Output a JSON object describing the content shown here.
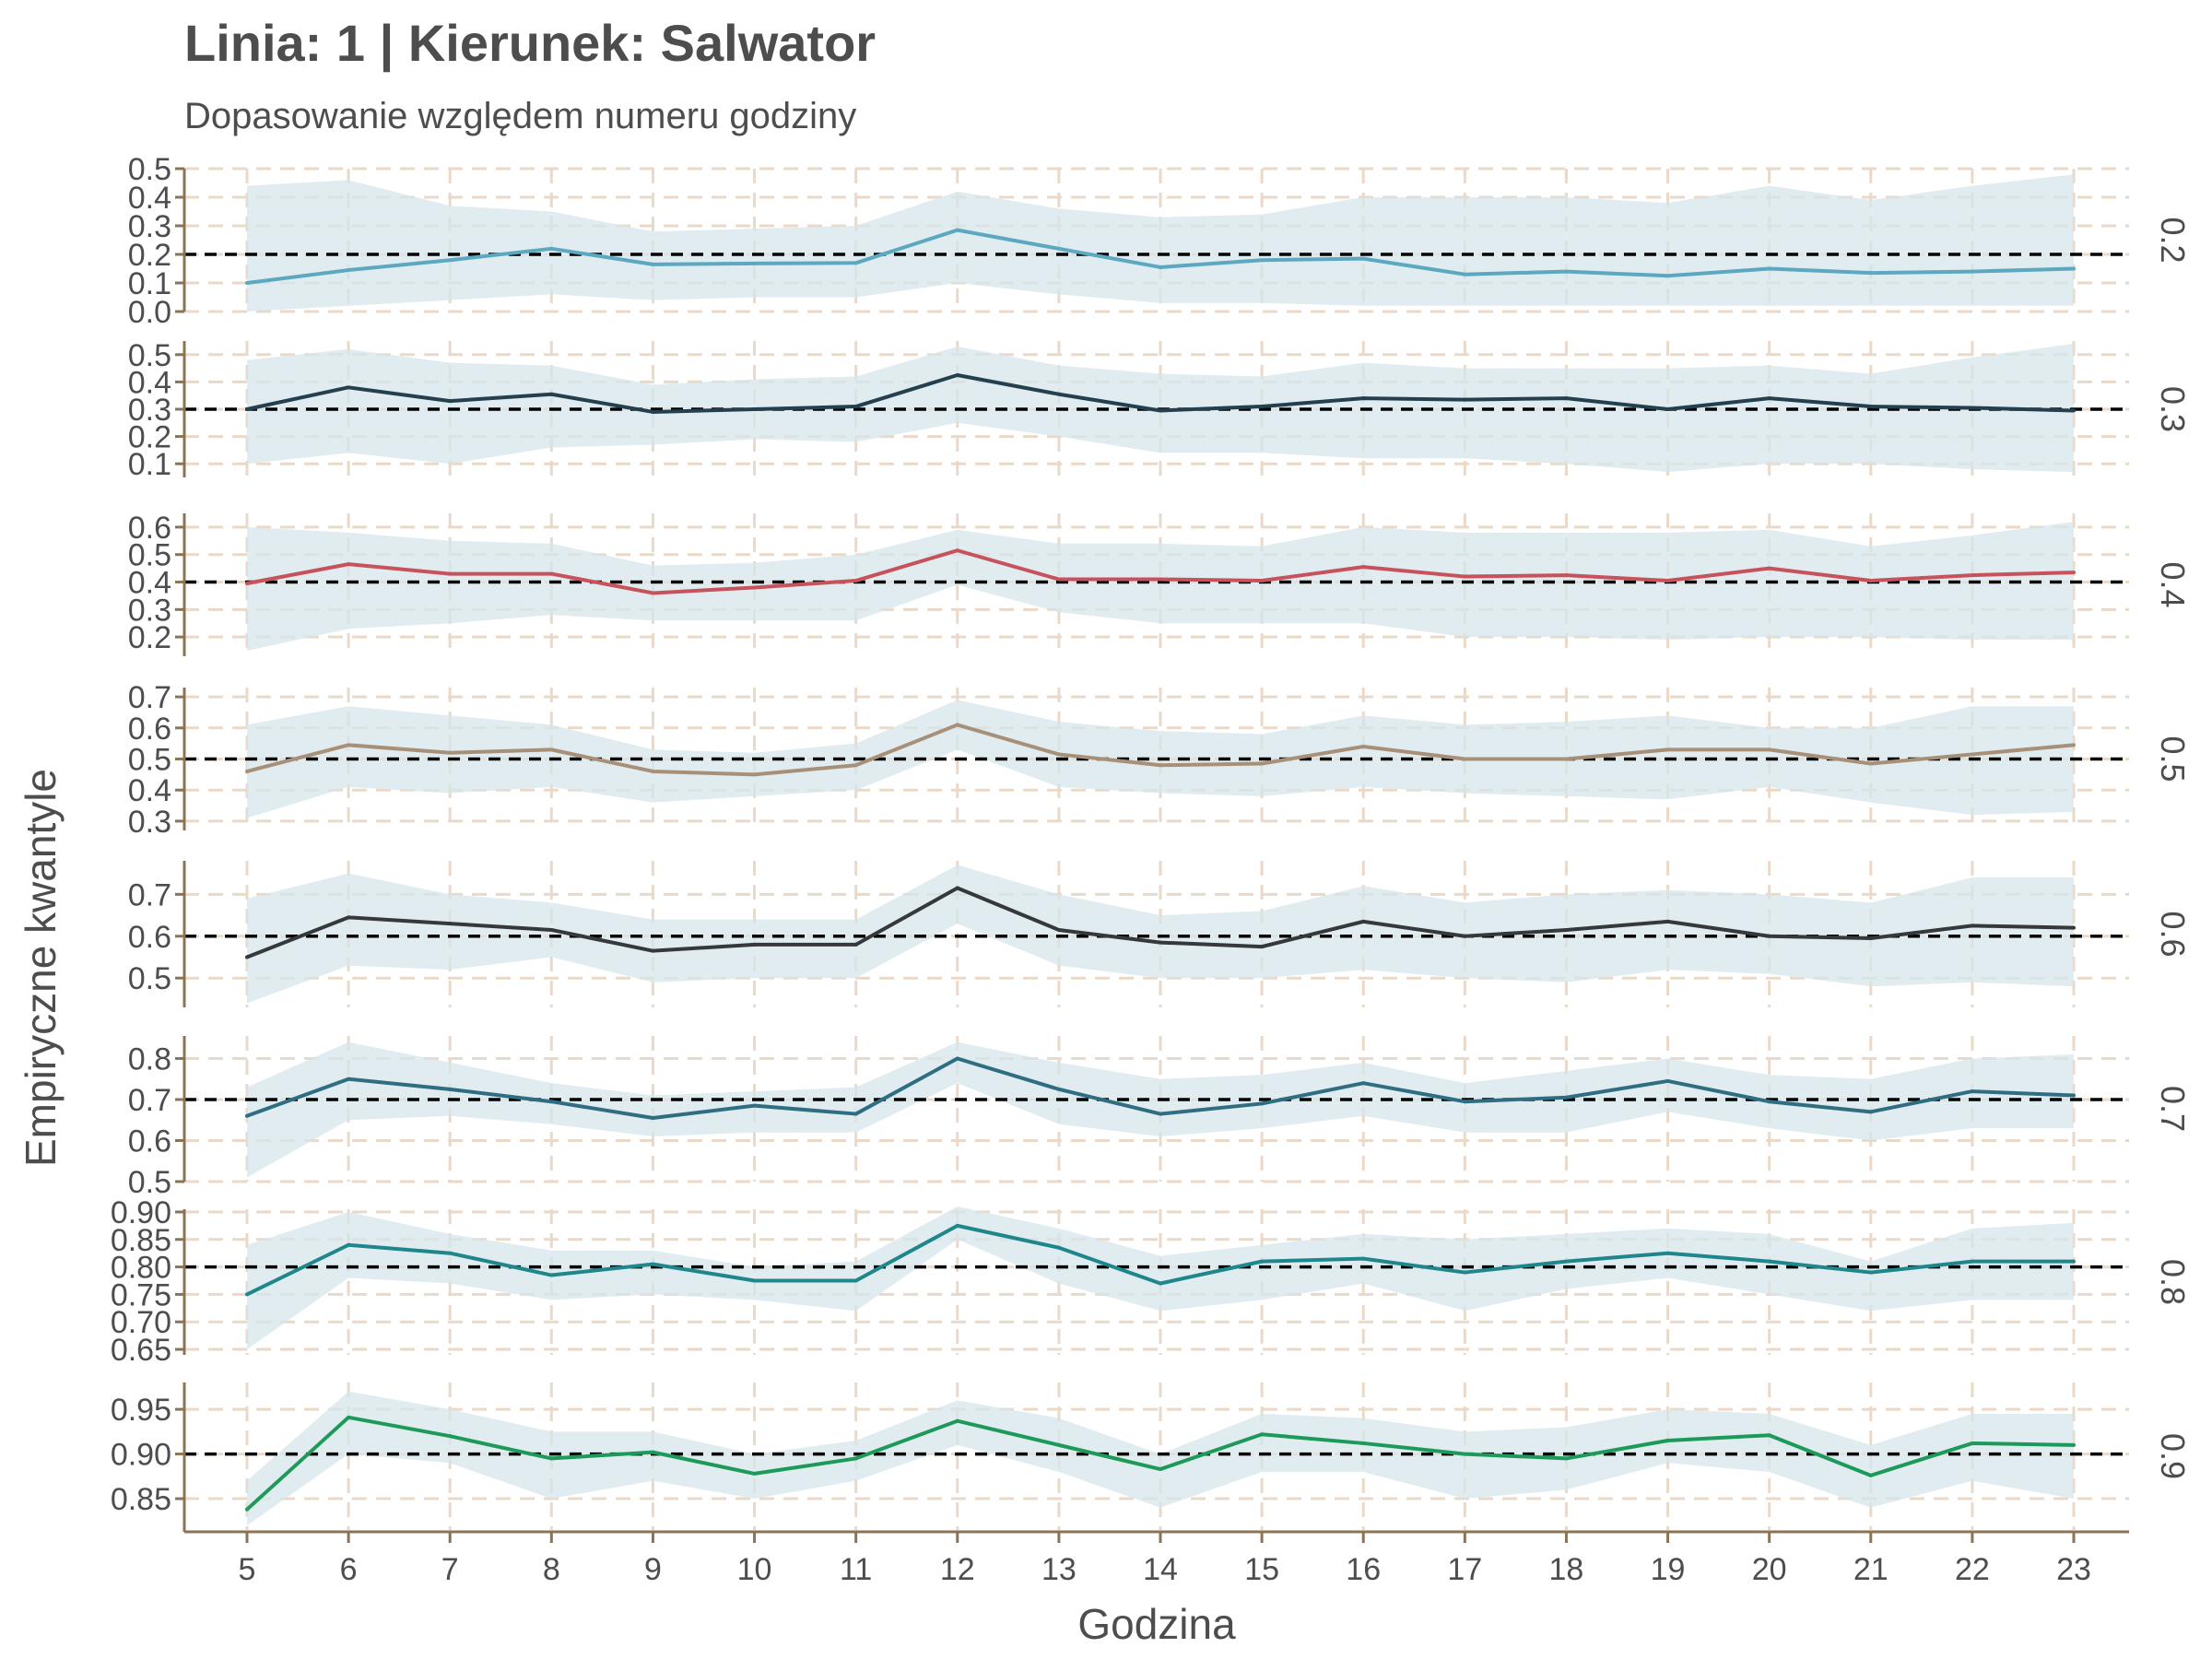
{
  "title": "Linia: 1 | Kierunek: Salwator",
  "subtitle": "Dopasowanie względem numeru godziny",
  "colors": {
    "band": "#d5e6eb",
    "grid": "#ead9c8",
    "axis": "#8b7355",
    "reference": "#000000",
    "text": "#4d4d4d"
  },
  "chart_data": {
    "type": "line",
    "xlabel": "Godzina",
    "ylabel": "Empiryczne kwantyle",
    "x": [
      5,
      6,
      7,
      8,
      9,
      10,
      11,
      12,
      13,
      14,
      15,
      16,
      17,
      18,
      19,
      20,
      21,
      22,
      23
    ],
    "grid": true,
    "ribbon": "confidence band",
    "panels": [
      {
        "strip": "0.2",
        "reference": 0.2,
        "color": "#5ba8c0",
        "ylim": [
          0.0,
          0.5
        ],
        "yticks": [
          0.0,
          0.1,
          0.2,
          0.3,
          0.4,
          0.5
        ],
        "ytick_labels": [
          "0.0",
          "0.1",
          "0.2",
          "0.3",
          "0.4",
          "0.5"
        ],
        "values": [
          0.1,
          0.145,
          0.18,
          0.22,
          0.165,
          0.168,
          0.17,
          0.285,
          0.22,
          0.155,
          0.18,
          0.185,
          0.13,
          0.14,
          0.125,
          0.15,
          0.135,
          0.14,
          0.15
        ],
        "lower": [
          0.0,
          0.02,
          0.04,
          0.06,
          0.04,
          0.05,
          0.05,
          0.1,
          0.06,
          0.03,
          0.03,
          0.02,
          0.02,
          0.02,
          0.02,
          0.02,
          0.02,
          0.02,
          0.02
        ],
        "upper": [
          0.44,
          0.46,
          0.37,
          0.35,
          0.28,
          0.29,
          0.3,
          0.42,
          0.36,
          0.33,
          0.34,
          0.4,
          0.4,
          0.4,
          0.38,
          0.44,
          0.39,
          0.44,
          0.48
        ]
      },
      {
        "strip": "0.3",
        "reference": 0.3,
        "color": "#24404e",
        "ylim": [
          0.05,
          0.55
        ],
        "yticks": [
          0.1,
          0.2,
          0.3,
          0.4,
          0.5
        ],
        "ytick_labels": [
          "0.1",
          "0.2",
          "0.3",
          "0.4",
          "0.5"
        ],
        "values": [
          0.3,
          0.38,
          0.33,
          0.355,
          0.29,
          0.3,
          0.31,
          0.425,
          0.355,
          0.295,
          0.31,
          0.34,
          0.335,
          0.34,
          0.3,
          0.34,
          0.31,
          0.305,
          0.295
        ],
        "lower": [
          0.1,
          0.14,
          0.1,
          0.16,
          0.17,
          0.19,
          0.18,
          0.25,
          0.2,
          0.14,
          0.14,
          0.12,
          0.12,
          0.1,
          0.07,
          0.1,
          0.1,
          0.08,
          0.07
        ],
        "upper": [
          0.48,
          0.52,
          0.47,
          0.46,
          0.39,
          0.41,
          0.42,
          0.53,
          0.46,
          0.43,
          0.42,
          0.47,
          0.45,
          0.45,
          0.45,
          0.46,
          0.43,
          0.49,
          0.54
        ]
      },
      {
        "strip": "0.4",
        "reference": 0.4,
        "color": "#c7525b",
        "ylim": [
          0.13,
          0.65
        ],
        "yticks": [
          0.2,
          0.3,
          0.4,
          0.5,
          0.6
        ],
        "ytick_labels": [
          "0.2",
          "0.3",
          "0.4",
          "0.5",
          "0.6"
        ],
        "values": [
          0.395,
          0.465,
          0.43,
          0.43,
          0.36,
          0.38,
          0.405,
          0.515,
          0.41,
          0.41,
          0.405,
          0.455,
          0.42,
          0.425,
          0.405,
          0.45,
          0.405,
          0.425,
          0.435
        ],
        "lower": [
          0.15,
          0.23,
          0.25,
          0.28,
          0.26,
          0.26,
          0.26,
          0.39,
          0.29,
          0.25,
          0.25,
          0.25,
          0.2,
          0.2,
          0.19,
          0.2,
          0.2,
          0.19,
          0.19
        ],
        "upper": [
          0.6,
          0.58,
          0.55,
          0.54,
          0.46,
          0.47,
          0.5,
          0.59,
          0.54,
          0.54,
          0.53,
          0.6,
          0.58,
          0.58,
          0.58,
          0.59,
          0.53,
          0.57,
          0.62
        ]
      },
      {
        "strip": "0.5",
        "reference": 0.5,
        "color": "#a89078",
        "ylim": [
          0.27,
          0.73
        ],
        "yticks": [
          0.3,
          0.4,
          0.5,
          0.6,
          0.7
        ],
        "ytick_labels": [
          "0.3",
          "0.4",
          "0.5",
          "0.6",
          "0.7"
        ],
        "values": [
          0.46,
          0.545,
          0.52,
          0.53,
          0.46,
          0.45,
          0.48,
          0.61,
          0.515,
          0.48,
          0.485,
          0.54,
          0.5,
          0.5,
          0.53,
          0.53,
          0.485,
          0.515,
          0.545
        ],
        "lower": [
          0.31,
          0.41,
          0.39,
          0.41,
          0.36,
          0.38,
          0.4,
          0.53,
          0.41,
          0.39,
          0.38,
          0.41,
          0.39,
          0.38,
          0.37,
          0.41,
          0.36,
          0.32,
          0.33
        ],
        "upper": [
          0.61,
          0.67,
          0.64,
          0.61,
          0.53,
          0.52,
          0.55,
          0.69,
          0.62,
          0.59,
          0.58,
          0.64,
          0.61,
          0.62,
          0.64,
          0.6,
          0.6,
          0.67,
          0.67
        ]
      },
      {
        "strip": "0.6",
        "reference": 0.6,
        "color": "#36393b",
        "ylim": [
          0.43,
          0.78
        ],
        "yticks": [
          0.5,
          0.6,
          0.7
        ],
        "ytick_labels": [
          "0.5",
          "0.6",
          "0.7"
        ],
        "values": [
          0.55,
          0.645,
          0.63,
          0.615,
          0.565,
          0.58,
          0.58,
          0.715,
          0.615,
          0.585,
          0.575,
          0.635,
          0.6,
          0.615,
          0.635,
          0.6,
          0.595,
          0.625,
          0.62
        ],
        "lower": [
          0.44,
          0.53,
          0.52,
          0.55,
          0.49,
          0.5,
          0.5,
          0.63,
          0.53,
          0.5,
          0.5,
          0.52,
          0.5,
          0.49,
          0.52,
          0.51,
          0.48,
          0.49,
          0.48
        ],
        "upper": [
          0.69,
          0.75,
          0.7,
          0.68,
          0.64,
          0.64,
          0.64,
          0.77,
          0.7,
          0.65,
          0.66,
          0.72,
          0.68,
          0.7,
          0.71,
          0.7,
          0.68,
          0.74,
          0.74
        ]
      },
      {
        "strip": "0.7",
        "reference": 0.7,
        "color": "#2f6e82",
        "ylim": [
          0.5,
          0.855
        ],
        "yticks": [
          0.5,
          0.6,
          0.7,
          0.8
        ],
        "ytick_labels": [
          "0.5",
          "0.6",
          "0.7",
          "0.8"
        ],
        "values": [
          0.66,
          0.75,
          0.725,
          0.695,
          0.655,
          0.685,
          0.665,
          0.8,
          0.725,
          0.665,
          0.69,
          0.74,
          0.695,
          0.705,
          0.745,
          0.695,
          0.67,
          0.72,
          0.71
        ],
        "lower": [
          0.51,
          0.65,
          0.66,
          0.64,
          0.61,
          0.62,
          0.62,
          0.74,
          0.64,
          0.61,
          0.63,
          0.66,
          0.62,
          0.62,
          0.67,
          0.63,
          0.6,
          0.63,
          0.63
        ],
        "upper": [
          0.73,
          0.84,
          0.79,
          0.74,
          0.71,
          0.72,
          0.73,
          0.84,
          0.79,
          0.75,
          0.76,
          0.79,
          0.74,
          0.77,
          0.8,
          0.76,
          0.75,
          0.8,
          0.81
        ]
      },
      {
        "strip": "0.8",
        "reference": 0.8,
        "color": "#1f878b",
        "ylim": [
          0.64,
          0.905
        ],
        "yticks": [
          0.65,
          0.7,
          0.75,
          0.8,
          0.85,
          0.9
        ],
        "ytick_labels": [
          "0.65",
          "0.70",
          "0.75",
          "0.80",
          "0.85",
          "0.90"
        ],
        "values": [
          0.75,
          0.84,
          0.825,
          0.785,
          0.805,
          0.775,
          0.775,
          0.875,
          0.835,
          0.77,
          0.81,
          0.815,
          0.79,
          0.81,
          0.825,
          0.81,
          0.79,
          0.81,
          0.81
        ],
        "lower": [
          0.65,
          0.78,
          0.77,
          0.74,
          0.75,
          0.74,
          0.72,
          0.85,
          0.77,
          0.72,
          0.74,
          0.77,
          0.72,
          0.76,
          0.78,
          0.75,
          0.72,
          0.74,
          0.74
        ],
        "upper": [
          0.84,
          0.9,
          0.86,
          0.83,
          0.83,
          0.8,
          0.81,
          0.91,
          0.87,
          0.82,
          0.84,
          0.86,
          0.85,
          0.86,
          0.87,
          0.86,
          0.81,
          0.87,
          0.88
        ]
      },
      {
        "strip": "0.9",
        "reference": 0.9,
        "color": "#1d9a5a",
        "ylim": [
          0.815,
          0.98
        ],
        "yticks": [
          0.85,
          0.9,
          0.95
        ],
        "ytick_labels": [
          "0.85",
          "0.90",
          "0.95"
        ],
        "values": [
          0.838,
          0.941,
          0.92,
          0.895,
          0.902,
          0.878,
          0.895,
          0.937,
          0.91,
          0.883,
          0.922,
          0.912,
          0.9,
          0.895,
          0.915,
          0.921,
          0.876,
          0.912,
          0.91
        ],
        "lower": [
          0.82,
          0.9,
          0.89,
          0.85,
          0.87,
          0.85,
          0.87,
          0.91,
          0.88,
          0.84,
          0.88,
          0.88,
          0.85,
          0.86,
          0.89,
          0.88,
          0.84,
          0.87,
          0.85
        ],
        "upper": [
          0.87,
          0.97,
          0.95,
          0.925,
          0.925,
          0.9,
          0.915,
          0.96,
          0.94,
          0.9,
          0.945,
          0.94,
          0.925,
          0.93,
          0.95,
          0.945,
          0.91,
          0.945,
          0.945
        ]
      }
    ]
  }
}
